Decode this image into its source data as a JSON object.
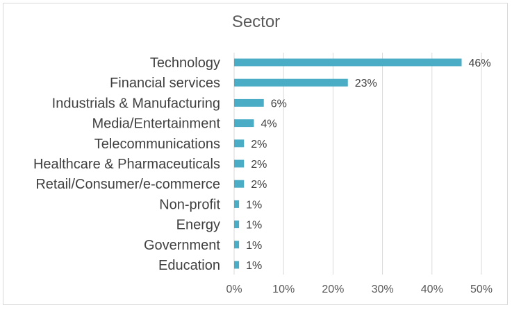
{
  "chart_data": {
    "type": "bar",
    "orientation": "horizontal",
    "title": "Sector",
    "categories": [
      "Technology",
      "Financial services",
      "Industrials & Manufacturing",
      "Media/Entertainment",
      "Telecommunications",
      "Healthcare & Pharmaceuticals",
      "Retail/Consumer/e-commerce",
      "Non-profit",
      "Energy",
      "Government",
      "Education"
    ],
    "values": [
      46,
      23,
      6,
      4,
      2,
      2,
      2,
      1,
      1,
      1,
      1
    ],
    "data_labels": [
      "46%",
      "23%",
      "6%",
      "4%",
      "2%",
      "2%",
      "2%",
      "1%",
      "1%",
      "1%",
      "1%"
    ],
    "x_ticks": [
      "0%",
      "10%",
      "20%",
      "30%",
      "40%",
      "50%"
    ],
    "xlim": [
      0,
      50
    ],
    "xlabel": "",
    "ylabel": "",
    "grid": "vertical",
    "legend": "none",
    "bar_color": "#4bacc6",
    "grid_color": "#d9d9d9",
    "text_color": "#404040"
  }
}
